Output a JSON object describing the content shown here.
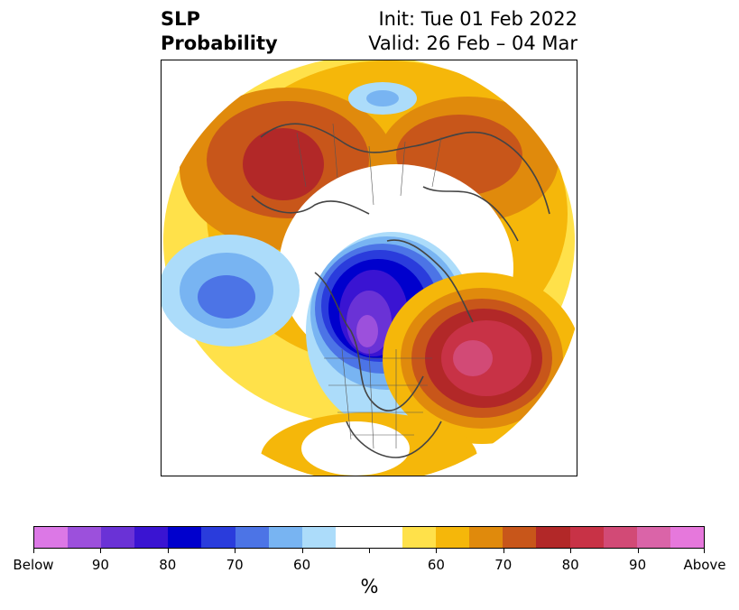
{
  "title": {
    "variable": "SLP",
    "subtitle": "Probability",
    "init": "Init: Tue 01 Feb 2022",
    "valid": "Valid: 26 Feb – 04 Mar"
  },
  "colorbar": {
    "unit": "%",
    "tick_labels": [
      "Below",
      "90",
      "80",
      "70",
      "60",
      "60",
      "70",
      "80",
      "90",
      "Above"
    ],
    "below_colors": [
      "#dc78e6",
      "#9c50dc",
      "#6a32d6",
      "#3a14d2",
      "#0000cd",
      "#2a3cdc",
      "#4c74e6",
      "#78b4f2",
      "#acdcfa"
    ],
    "neutral_color": "#ffffff",
    "above_colors": [
      "#ffe14a",
      "#f5b70a",
      "#e08a0c",
      "#c8561a",
      "#b22828",
      "#c83246",
      "#d24a76",
      "#da64a8",
      "#e678dc"
    ]
  },
  "map": {
    "projection": "north-polar-stereographic",
    "features": [
      "Siberia high positive anomaly",
      "Canada/Greenland low negative anomaly",
      "North Atlantic high positive anomaly",
      "North Pacific low negative anomaly"
    ]
  }
}
